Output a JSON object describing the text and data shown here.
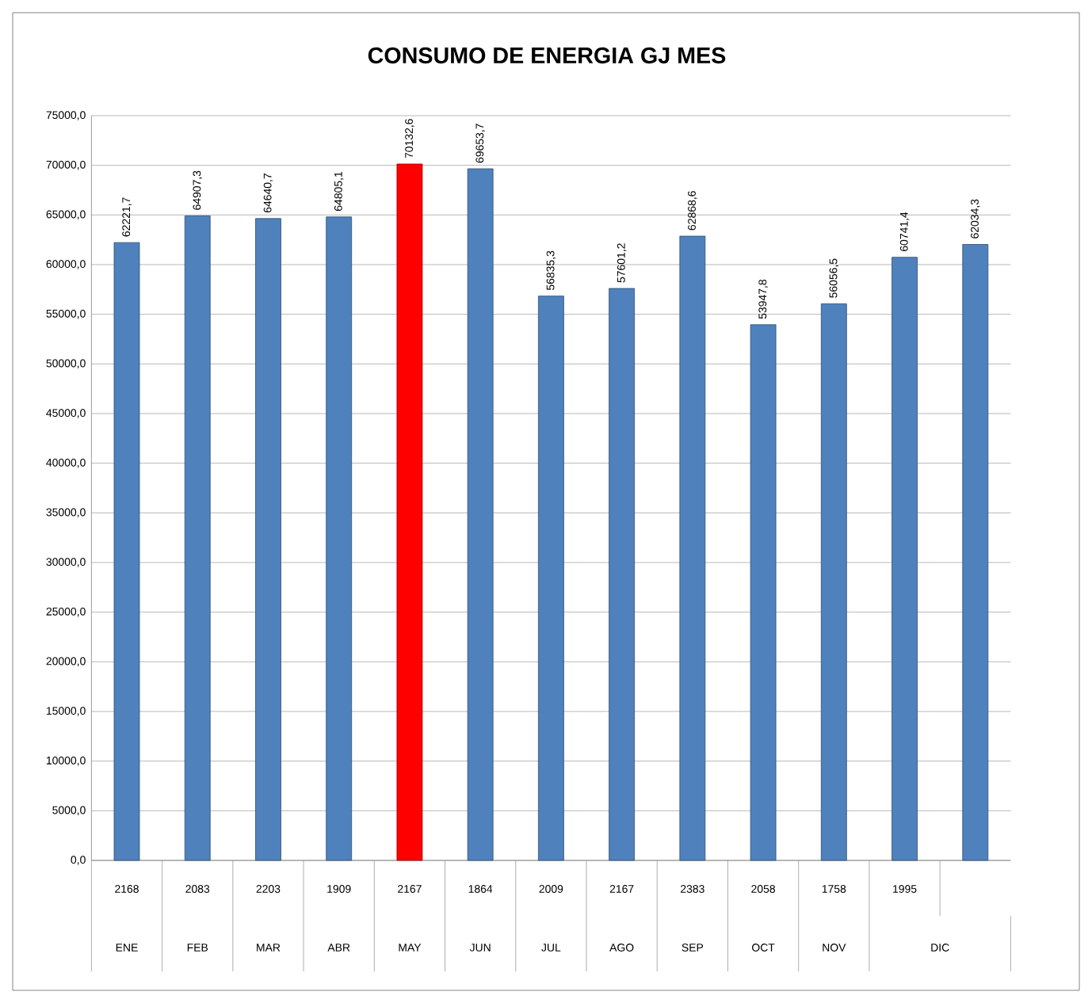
{
  "chart_data": {
    "type": "bar",
    "title": "CONSUMO DE ENERGIA GJ MES",
    "categories": [
      "2168",
      "2083",
      "2203",
      "1909",
      "2167",
      "1864",
      "2009",
      "2167",
      "2383",
      "2058",
      "1758",
      "1995",
      null
    ],
    "values": [
      62221.7,
      64907.3,
      64640.7,
      64805.1,
      70132.6,
      69653.7,
      56835.3,
      57601.2,
      62868.6,
      53947.8,
      56056.5,
      60741.4,
      62034.3
    ],
    "value_labels": [
      "62221,7",
      "64907,3",
      "64640,7",
      "64805,1",
      "70132,6",
      "69653,7",
      "56835,3",
      "57601,2",
      "62868,6",
      "53947,8",
      "56056,5",
      "60741,4",
      "62034,3"
    ],
    "colors": [
      "#4f81bd",
      "#4f81bd",
      "#4f81bd",
      "#4f81bd",
      "#ff0000",
      "#4f81bd",
      "#4f81bd",
      "#4f81bd",
      "#4f81bd",
      "#4f81bd",
      "#4f81bd",
      "#4f81bd",
      "#4f81bd"
    ],
    "annotations": [
      "ENE",
      "FEB",
      "MAR",
      "ABR",
      "MAY",
      "JUN",
      "JUL",
      "AGO",
      "SEP",
      "OCT",
      "NOV",
      "DIC"
    ],
    "ylim": [
      0,
      75000
    ],
    "yticks": [
      {
        "value": 0,
        "label": "0,0"
      },
      {
        "value": 5000,
        "label": "5000,0"
      },
      {
        "value": 10000,
        "label": "10000,0"
      },
      {
        "value": 15000,
        "label": "15000,0"
      },
      {
        "value": 20000,
        "label": "20000,0"
      },
      {
        "value": 25000,
        "label": "25000,0"
      },
      {
        "value": 30000,
        "label": "30000,0"
      },
      {
        "value": 35000,
        "label": "35000,0"
      },
      {
        "value": 40000,
        "label": "40000,0"
      },
      {
        "value": 45000,
        "label": "45000,0"
      },
      {
        "value": 50000,
        "label": "50000,0"
      },
      {
        "value": 55000,
        "label": "55000,0"
      },
      {
        "value": 60000,
        "label": "60000,0"
      },
      {
        "value": 65000,
        "label": "65000,0"
      },
      {
        "value": 70000,
        "label": "70000,0"
      },
      {
        "value": 75000,
        "label": "75000,0"
      }
    ],
    "grid": "y"
  }
}
